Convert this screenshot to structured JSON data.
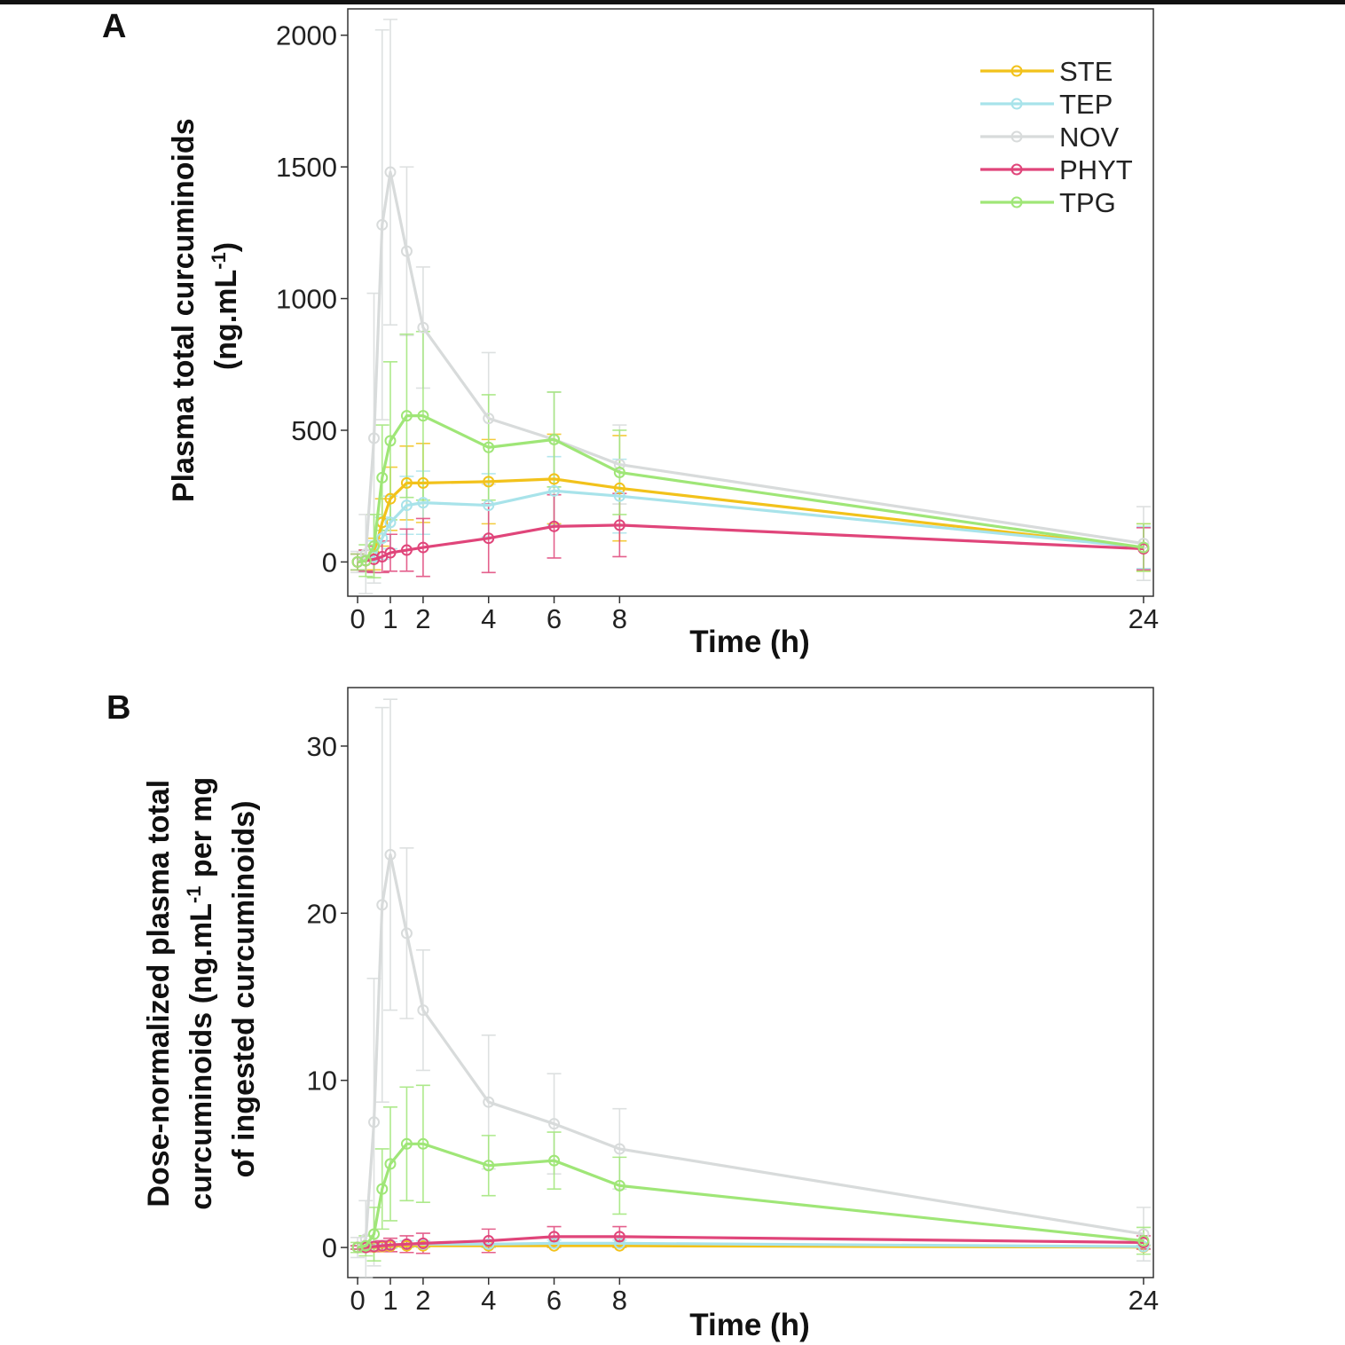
{
  "chart_data": [
    {
      "panel": "A",
      "type": "line",
      "xlabel": "Time (h)",
      "ylabel_lines": [
        "Plasma total curcuminoids",
        "(ng.mL",
        "-1",
        ")"
      ],
      "xticks": [
        0,
        1,
        2,
        4,
        6,
        8,
        24
      ],
      "yticks": [
        0,
        500,
        1000,
        1500,
        2000
      ],
      "xlim": [
        -0.3,
        24.3
      ],
      "ylim": [
        -130,
        2100
      ],
      "legend_position": "top-right",
      "series": [
        {
          "name": "STE",
          "color": "#f2c21b",
          "x": [
            0,
            0.25,
            0.5,
            0.75,
            1,
            1.5,
            2,
            4,
            6,
            8,
            24
          ],
          "y": [
            0,
            5,
            30,
            150,
            240,
            300,
            300,
            305,
            315,
            280,
            55
          ],
          "err": [
            30,
            40,
            60,
            90,
            120,
            140,
            150,
            160,
            170,
            200,
            90
          ]
        },
        {
          "name": "TEP",
          "color": "#a8e3ea",
          "x": [
            0,
            0.25,
            0.5,
            0.75,
            1,
            1.5,
            2,
            4,
            6,
            8,
            24
          ],
          "y": [
            0,
            5,
            20,
            90,
            150,
            215,
            225,
            215,
            270,
            250,
            55
          ],
          "err": [
            30,
            40,
            60,
            80,
            100,
            110,
            120,
            120,
            130,
            140,
            80
          ]
        },
        {
          "name": "NOV",
          "color": "#d8dbdb",
          "x": [
            0,
            0.25,
            0.5,
            0.75,
            1,
            1.5,
            2,
            4,
            6,
            8,
            24
          ],
          "y": [
            0,
            30,
            470,
            1280,
            1480,
            1180,
            890,
            545,
            465,
            370,
            70
          ],
          "err": [
            40,
            150,
            550,
            740,
            580,
            320,
            230,
            250,
            180,
            150,
            140
          ]
        },
        {
          "name": "PHYT",
          "color": "#e0457a",
          "x": [
            0,
            0.25,
            0.5,
            0.75,
            1,
            1.5,
            2,
            4,
            6,
            8,
            24
          ],
          "y": [
            0,
            5,
            10,
            20,
            35,
            45,
            55,
            90,
            135,
            140,
            50
          ],
          "err": [
            30,
            40,
            50,
            60,
            70,
            80,
            110,
            130,
            120,
            120,
            80
          ]
        },
        {
          "name": "TPG",
          "color": "#9fe677",
          "x": [
            0,
            0.25,
            0.5,
            0.75,
            1,
            1.5,
            2,
            4,
            6,
            8,
            24
          ],
          "y": [
            0,
            5,
            60,
            320,
            460,
            555,
            555,
            435,
            465,
            340,
            55
          ],
          "err": [
            30,
            60,
            120,
            200,
            300,
            310,
            320,
            200,
            180,
            160,
            90
          ]
        }
      ]
    },
    {
      "panel": "B",
      "type": "line",
      "xlabel": "Time (h)",
      "ylabel_lines": [
        "Dose-normalized plasma total",
        "curcuminoids (ng.mL",
        "-1",
        " per mg",
        "of ingested curcuminoids)"
      ],
      "xticks": [
        0,
        1,
        2,
        4,
        6,
        8,
        24
      ],
      "yticks": [
        0,
        10,
        20,
        30
      ],
      "xlim": [
        -0.3,
        24.3
      ],
      "ylim": [
        -1.8,
        33.5
      ],
      "series": [
        {
          "name": "STE",
          "color": "#f2c21b",
          "x": [
            0,
            0.25,
            0.5,
            0.75,
            1,
            1.5,
            2,
            4,
            6,
            8,
            24
          ],
          "y": [
            0,
            0,
            0.02,
            0.05,
            0.08,
            0.1,
            0.1,
            0.1,
            0.1,
            0.1,
            0.02
          ],
          "err": [
            0.1,
            0.1,
            0.1,
            0.1,
            0.1,
            0.1,
            0.1,
            0.1,
            0.1,
            0.1,
            0.1
          ]
        },
        {
          "name": "TEP",
          "color": "#a8e3ea",
          "x": [
            0,
            0.25,
            0.5,
            0.75,
            1,
            1.5,
            2,
            4,
            6,
            8,
            24
          ],
          "y": [
            0,
            0,
            0.05,
            0.1,
            0.15,
            0.2,
            0.2,
            0.2,
            0.25,
            0.25,
            0.05
          ],
          "err": [
            0.1,
            0.1,
            0.1,
            0.1,
            0.2,
            0.2,
            0.2,
            0.2,
            0.2,
            0.2,
            0.1
          ]
        },
        {
          "name": "NOV",
          "color": "#d8dbdb",
          "x": [
            0,
            0.25,
            0.5,
            0.75,
            1,
            1.5,
            2,
            4,
            6,
            8,
            24
          ],
          "y": [
            0,
            0.5,
            7.5,
            20.5,
            23.5,
            18.8,
            14.2,
            8.7,
            7.4,
            5.9,
            0.8
          ],
          "err": [
            0.6,
            2.3,
            8.6,
            11.8,
            9.3,
            5.1,
            3.6,
            4.0,
            3.0,
            2.4,
            1.6
          ]
        },
        {
          "name": "PHYT",
          "color": "#e0457a",
          "x": [
            0,
            0.25,
            0.5,
            0.75,
            1,
            1.5,
            2,
            4,
            6,
            8,
            24
          ],
          "y": [
            0,
            0,
            0.05,
            0.1,
            0.15,
            0.2,
            0.25,
            0.4,
            0.65,
            0.65,
            0.3
          ],
          "err": [
            0.1,
            0.2,
            0.3,
            0.3,
            0.4,
            0.5,
            0.6,
            0.7,
            0.6,
            0.6,
            0.4
          ]
        },
        {
          "name": "TPG",
          "color": "#9fe677",
          "x": [
            0,
            0.25,
            0.5,
            0.75,
            1,
            1.5,
            2,
            4,
            6,
            8,
            24
          ],
          "y": [
            0,
            0.1,
            0.8,
            3.5,
            5.0,
            6.2,
            6.2,
            4.9,
            5.2,
            3.7,
            0.4
          ],
          "err": [
            0.3,
            0.6,
            1.6,
            2.4,
            3.4,
            3.4,
            3.5,
            1.8,
            1.7,
            1.7,
            0.8
          ]
        }
      ]
    }
  ],
  "panel_labels": {
    "a": "A",
    "b": "B"
  },
  "legend": [
    "STE",
    "TEP",
    "NOV",
    "PHYT",
    "TPG"
  ]
}
